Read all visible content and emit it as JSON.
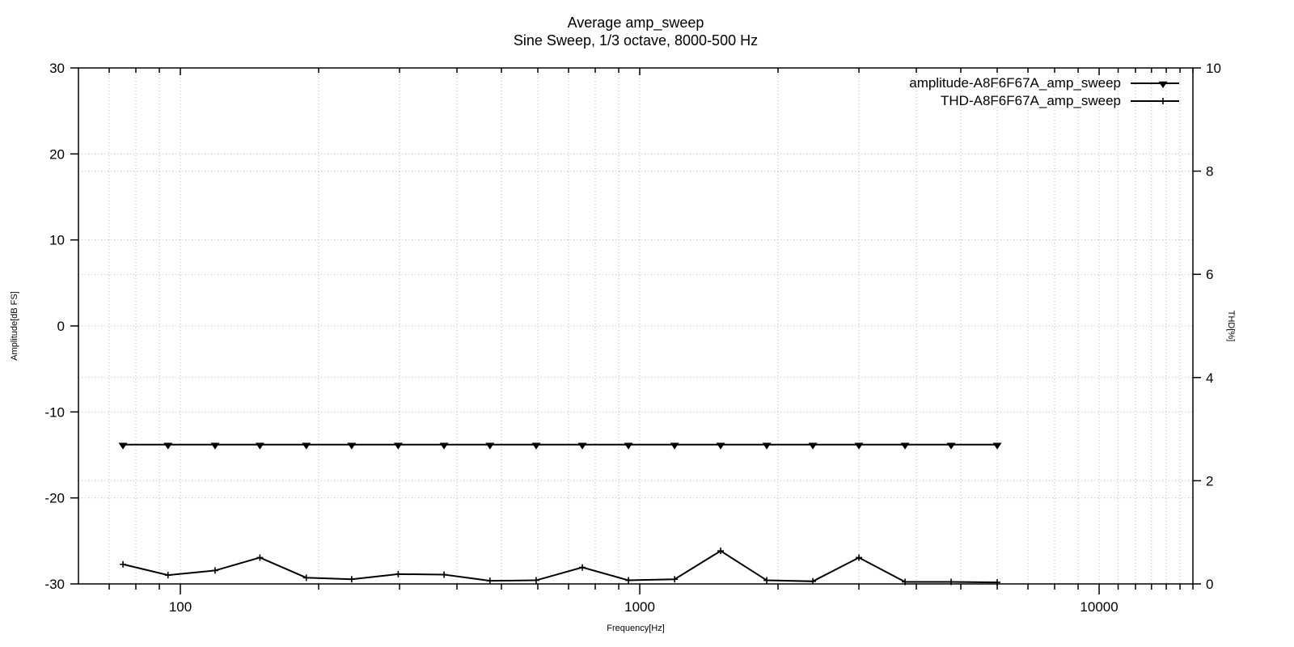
{
  "title": {
    "line1": "Average amp_sweep",
    "line2": "Sine Sweep, 1/3 octave, 8000-500 Hz"
  },
  "axes": {
    "x": {
      "label": "Frequency[Hz]",
      "scale": "log",
      "min": 60,
      "max": 16000,
      "major_ticks": [
        {
          "value": 100,
          "label": "100"
        },
        {
          "value": 1000,
          "label": "1000"
        },
        {
          "value": 10000,
          "label": "10000"
        }
      ],
      "minor_ticks": [
        70,
        80,
        90,
        200,
        300,
        400,
        500,
        600,
        700,
        800,
        900,
        2000,
        3000,
        4000,
        5000,
        6000,
        7000,
        8000,
        9000,
        11000,
        12000,
        13000,
        14000,
        15000,
        16000
      ]
    },
    "y_left": {
      "label": "Amplitude[dB FS]",
      "min": -30,
      "max": 30,
      "ticks": [
        {
          "value": 30,
          "label": "30"
        },
        {
          "value": 20,
          "label": "20"
        },
        {
          "value": 10,
          "label": "10"
        },
        {
          "value": 0,
          "label": "0"
        },
        {
          "value": -10,
          "label": "-10"
        },
        {
          "value": -20,
          "label": "-20"
        },
        {
          "value": -30,
          "label": "-30"
        }
      ]
    },
    "y_right": {
      "label": "THD[%]",
      "min": 0,
      "max": 10,
      "ticks": [
        {
          "value": 10,
          "label": "10"
        },
        {
          "value": 8,
          "label": "8"
        },
        {
          "value": 6,
          "label": "6"
        },
        {
          "value": 4,
          "label": "4"
        },
        {
          "value": 2,
          "label": "2"
        },
        {
          "value": 0,
          "label": "0"
        }
      ]
    }
  },
  "legend": [
    {
      "label": "amplitude-A8F6F67A_amp_sweep",
      "marker": "triangle-down"
    },
    {
      "label": "THD-A8F6F67A_amp_sweep",
      "marker": "plus"
    }
  ],
  "colors": {
    "foreground": "#000000",
    "grid": "#b8b8b8",
    "background": "#ffffff"
  },
  "chart_data": {
    "type": "line",
    "title": "Average amp_sweep",
    "subtitle": "Sine Sweep, 1/3 octave, 8000-500 Hz",
    "xlabel": "Frequency[Hz]",
    "ylabel": "Amplitude[dB FS]",
    "y2label": "THD[%]",
    "xscale": "log",
    "xlim": [
      60,
      16000
    ],
    "ylim": [
      -30,
      30
    ],
    "y2lim": [
      0,
      10
    ],
    "grid": "dotted",
    "legend_position": "top-right-inside",
    "x": [
      75,
      94,
      119,
      149,
      188,
      236,
      298,
      375,
      472,
      595,
      750,
      945,
      1191,
      1500,
      1890,
      2381,
      3000,
      3780,
      4762,
      6000
    ],
    "series": [
      {
        "name": "amplitude-A8F6F67A_amp_sweep",
        "axis": "left",
        "marker": "triangle-down",
        "values": [
          -13.8,
          -13.8,
          -13.8,
          -13.8,
          -13.8,
          -13.8,
          -13.8,
          -13.8,
          -13.8,
          -13.8,
          -13.8,
          -13.8,
          -13.8,
          -13.8,
          -13.8,
          -13.8,
          -13.8,
          -13.8,
          -13.8,
          -13.8
        ]
      },
      {
        "name": "THD-A8F6F67A_amp_sweep",
        "axis": "right",
        "marker": "plus",
        "values": [
          0.38,
          0.17,
          0.26,
          0.51,
          0.12,
          0.09,
          0.19,
          0.18,
          0.06,
          0.07,
          0.32,
          0.07,
          0.09,
          0.64,
          0.07,
          0.05,
          0.51,
          0.04,
          0.04,
          0.03
        ]
      }
    ]
  }
}
